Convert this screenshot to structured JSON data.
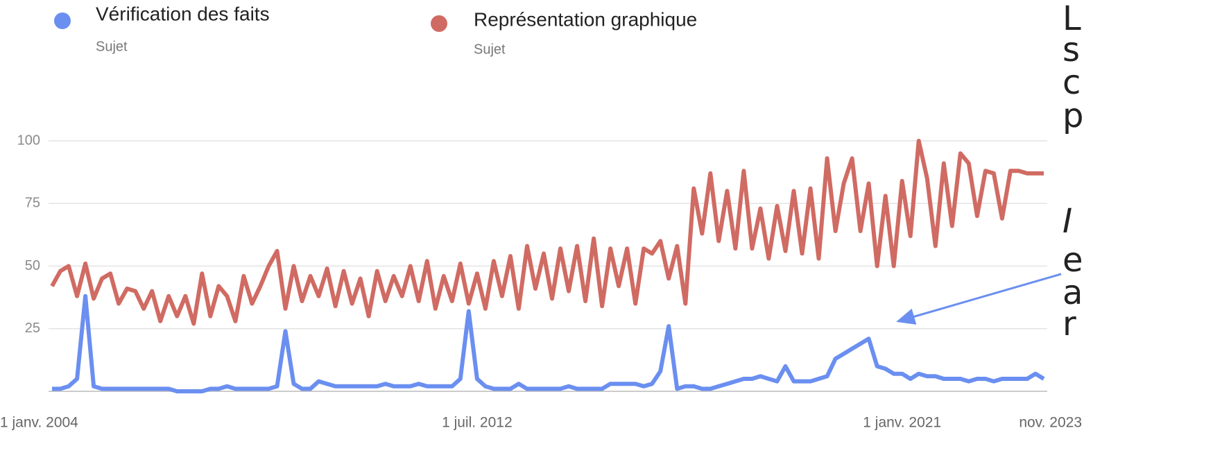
{
  "chart_data": {
    "type": "line",
    "legend": [
      {
        "name": "Vérification des faits",
        "subtitle": "Sujet"
      },
      {
        "name": "Représentation graphique",
        "subtitle": "Sujet"
      }
    ],
    "side_text": [
      "L",
      "s",
      "c",
      "p",
      "I",
      "e",
      "a",
      "r"
    ],
    "x": [
      "2004-01",
      "2004-03",
      "2004-05",
      "2004-07",
      "2004-09",
      "2004-11",
      "2005-01",
      "2005-03",
      "2005-05",
      "2005-07",
      "2005-09",
      "2005-11",
      "2006-01",
      "2006-03",
      "2006-05",
      "2006-07",
      "2006-09",
      "2006-11",
      "2007-01",
      "2007-03",
      "2007-05",
      "2007-07",
      "2007-09",
      "2007-11",
      "2008-01",
      "2008-03",
      "2008-05",
      "2008-07",
      "2008-09",
      "2008-11",
      "2009-01",
      "2009-03",
      "2009-05",
      "2009-07",
      "2009-09",
      "2009-11",
      "2010-01",
      "2010-03",
      "2010-05",
      "2010-07",
      "2010-09",
      "2010-11",
      "2011-01",
      "2011-03",
      "2011-05",
      "2011-07",
      "2011-09",
      "2011-11",
      "2012-01",
      "2012-03",
      "2012-05",
      "2012-07",
      "2012-09",
      "2012-11",
      "2013-01",
      "2013-03",
      "2013-05",
      "2013-07",
      "2013-09",
      "2013-11",
      "2014-01",
      "2014-03",
      "2014-05",
      "2014-07",
      "2014-09",
      "2014-11",
      "2015-01",
      "2015-03",
      "2015-05",
      "2015-07",
      "2015-09",
      "2015-11",
      "2016-01",
      "2016-03",
      "2016-05",
      "2016-07",
      "2016-09",
      "2016-11",
      "2017-01",
      "2017-03",
      "2017-05",
      "2017-07",
      "2017-09",
      "2017-11",
      "2018-01",
      "2018-03",
      "2018-05",
      "2018-07",
      "2018-09",
      "2018-11",
      "2019-01",
      "2019-03",
      "2019-05",
      "2019-07",
      "2019-09",
      "2019-11",
      "2020-01",
      "2020-03",
      "2020-05",
      "2020-07",
      "2020-09",
      "2020-11",
      "2021-01",
      "2021-03",
      "2021-05",
      "2021-07",
      "2021-09",
      "2021-11",
      "2022-01",
      "2022-03",
      "2022-05",
      "2022-07",
      "2022-09",
      "2022-11",
      "2023-01",
      "2023-03",
      "2023-05",
      "2023-07",
      "2023-09",
      "2023-11"
    ],
    "series": [
      {
        "name": "Vérification des faits",
        "color": "#6b8ff0",
        "values": [
          1,
          1,
          2,
          5,
          38,
          2,
          1,
          1,
          1,
          1,
          1,
          1,
          1,
          1,
          1,
          0,
          0,
          0,
          0,
          1,
          1,
          2,
          1,
          1,
          1,
          1,
          1,
          2,
          24,
          3,
          1,
          1,
          4,
          3,
          2,
          2,
          2,
          2,
          2,
          2,
          3,
          2,
          2,
          2,
          3,
          2,
          2,
          2,
          2,
          5,
          32,
          5,
          2,
          1,
          1,
          1,
          3,
          1,
          1,
          1,
          1,
          1,
          2,
          1,
          1,
          1,
          1,
          3,
          3,
          3,
          3,
          2,
          3,
          8,
          26,
          1,
          2,
          2,
          1,
          1,
          2,
          3,
          4,
          5,
          5,
          6,
          5,
          4,
          10,
          4,
          4,
          4,
          5,
          6,
          13,
          15,
          17,
          19,
          21,
          10,
          9,
          7,
          7,
          5,
          7,
          6,
          6,
          5,
          5,
          5,
          4,
          5,
          5,
          4,
          5,
          5,
          5,
          5,
          7,
          5
        ]
      },
      {
        "name": "Représentation graphique",
        "color": "#d06b63",
        "values": [
          42,
          48,
          50,
          38,
          51,
          37,
          45,
          47,
          35,
          41,
          40,
          33,
          40,
          28,
          38,
          30,
          38,
          27,
          47,
          30,
          42,
          38,
          28,
          46,
          35,
          42,
          50,
          56,
          33,
          50,
          36,
          46,
          38,
          49,
          34,
          48,
          35,
          45,
          30,
          48,
          36,
          46,
          38,
          50,
          36,
          52,
          33,
          46,
          36,
          51,
          35,
          47,
          33,
          52,
          38,
          54,
          33,
          58,
          41,
          55,
          37,
          57,
          40,
          58,
          36,
          61,
          34,
          57,
          42,
          57,
          35,
          57,
          55,
          60,
          45,
          58,
          35,
          81,
          63,
          87,
          60,
          80,
          57,
          88,
          57,
          73,
          53,
          74,
          56,
          80,
          55,
          81,
          53,
          93,
          64,
          83,
          93,
          64,
          83,
          50,
          78,
          50,
          84,
          62,
          100,
          85,
          58,
          91,
          66,
          95,
          91,
          70,
          88,
          87,
          69,
          88,
          88,
          87,
          87,
          87
        ]
      }
    ],
    "xlim": [
      "2004-01",
      "2023-11"
    ],
    "xticks": [
      {
        "value": "2004-01",
        "label": "1 janv. 2004"
      },
      {
        "value": "2012-07",
        "label": "1 juil. 2012"
      },
      {
        "value": "2021-01",
        "label": "1 janv. 2021"
      },
      {
        "value": "2023-11",
        "label": "nov. 2023"
      }
    ],
    "ylim": [
      0,
      100
    ],
    "yticks": [
      25,
      50,
      75,
      100
    ],
    "grid": true
  }
}
